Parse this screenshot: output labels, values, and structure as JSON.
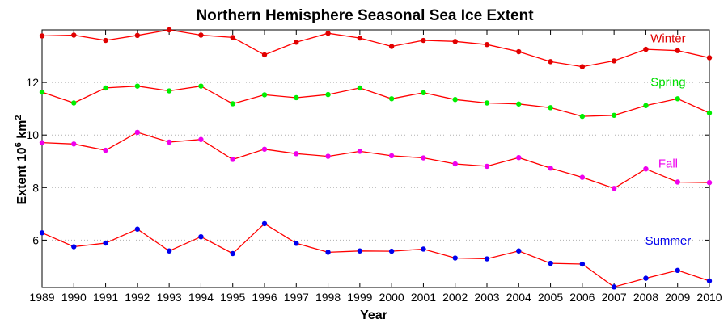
{
  "chart_data": {
    "type": "line",
    "title": "Northern Hemisphere Seasonal Sea Ice Extent",
    "xlabel": "Year",
    "ylabel": "Extent 10",
    "ylabel_sup": "6",
    "ylabel_unit": "km",
    "ylabel_unit_sup": "2",
    "xlim": [
      1989,
      2010
    ],
    "ylim": [
      4.2,
      14.0
    ],
    "yticks": [
      6,
      8,
      10,
      12
    ],
    "grid": true,
    "line_color": "#ff0000",
    "x": [
      1989,
      1990,
      1991,
      1992,
      1993,
      1994,
      1995,
      1996,
      1997,
      1998,
      1999,
      2000,
      2001,
      2002,
      2003,
      2004,
      2005,
      2006,
      2007,
      2008,
      2009,
      2010
    ],
    "series": [
      {
        "name": "Winter",
        "marker_color": "#e00000",
        "label_color": "#e00000",
        "values": [
          13.77,
          13.8,
          13.6,
          13.79,
          14.0,
          13.8,
          13.71,
          13.05,
          13.53,
          13.87,
          13.69,
          13.37,
          13.6,
          13.56,
          13.44,
          13.17,
          12.79,
          12.6,
          12.82,
          13.26,
          13.21,
          12.94
        ]
      },
      {
        "name": "Spring",
        "marker_color": "#00ee00",
        "label_color": "#00dd00",
        "values": [
          11.63,
          11.22,
          11.79,
          11.86,
          11.68,
          11.86,
          11.19,
          11.53,
          11.42,
          11.54,
          11.79,
          11.38,
          11.61,
          11.35,
          11.22,
          11.18,
          11.04,
          10.71,
          10.75,
          11.12,
          11.38,
          10.84
        ]
      },
      {
        "name": "Fall",
        "marker_color": "#ee00ee",
        "label_color": "#ee00ee",
        "values": [
          9.71,
          9.66,
          9.42,
          10.1,
          9.73,
          9.83,
          9.07,
          9.46,
          9.29,
          9.19,
          9.38,
          9.21,
          9.13,
          8.9,
          8.81,
          9.14,
          8.74,
          8.39,
          7.97,
          8.71,
          8.21,
          8.19
        ]
      },
      {
        "name": "Summer",
        "marker_color": "#0000ee",
        "label_color": "#0000ee",
        "values": [
          6.28,
          5.75,
          5.89,
          6.42,
          5.59,
          6.13,
          5.49,
          6.63,
          5.88,
          5.54,
          5.59,
          5.58,
          5.66,
          5.32,
          5.29,
          5.59,
          5.12,
          5.09,
          4.22,
          4.55,
          4.85,
          4.45
        ]
      }
    ]
  }
}
